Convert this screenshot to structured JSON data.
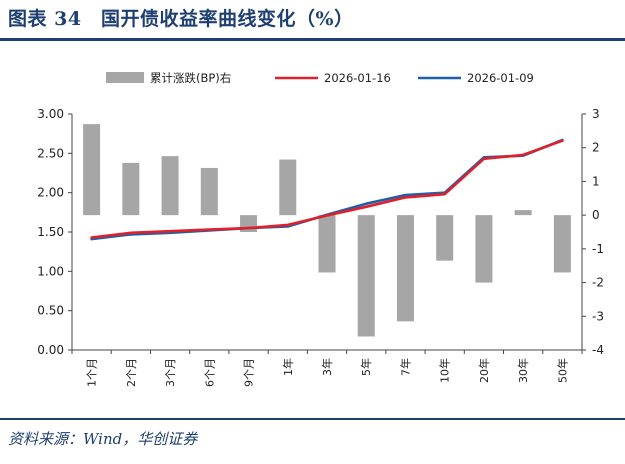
{
  "header": {
    "title": "图表 34　国开债收益率曲线变化（%）"
  },
  "footer": {
    "source": "资料来源：Wind，华创证券"
  },
  "colors": {
    "title": "#1f3f72",
    "bar": "#a6a6a6",
    "line_a": "#e0202a",
    "line_b": "#1f5ea8"
  },
  "chart_data": {
    "type": "bar+line",
    "categories": [
      "1个月",
      "2个月",
      "3个月",
      "6个月",
      "9个月",
      "1年",
      "3年",
      "5年",
      "7年",
      "10年",
      "20年",
      "30年",
      "50年"
    ],
    "bar_series": {
      "name": "累计涨跌(BP)右",
      "axis": "right",
      "values": [
        2.7,
        1.55,
        1.75,
        1.4,
        -0.5,
        1.65,
        -1.7,
        -3.6,
        -3.15,
        -1.35,
        -2.0,
        0.15,
        -1.7
      ]
    },
    "series": [
      {
        "name": "2026-01-16",
        "axis": "left",
        "values": [
          1.43,
          1.49,
          1.51,
          1.53,
          1.55,
          1.59,
          1.71,
          1.82,
          1.94,
          1.98,
          2.43,
          2.48,
          2.66
        ]
      },
      {
        "name": "2026-01-09",
        "axis": "left",
        "values": [
          1.41,
          1.47,
          1.49,
          1.52,
          1.55,
          1.57,
          1.72,
          1.86,
          1.97,
          2.0,
          2.45,
          2.47,
          2.67
        ]
      }
    ],
    "left_axis": {
      "ylim": [
        0,
        3
      ],
      "ticks": [
        "0.00",
        "0.50",
        "1.00",
        "1.50",
        "2.00",
        "2.50",
        "3.00"
      ]
    },
    "right_axis": {
      "ylim": [
        -4,
        3
      ],
      "ticks": [
        "-4",
        "-3",
        "-2",
        "-1",
        "0",
        "1",
        "2",
        "3"
      ]
    },
    "legend_position": "top"
  }
}
